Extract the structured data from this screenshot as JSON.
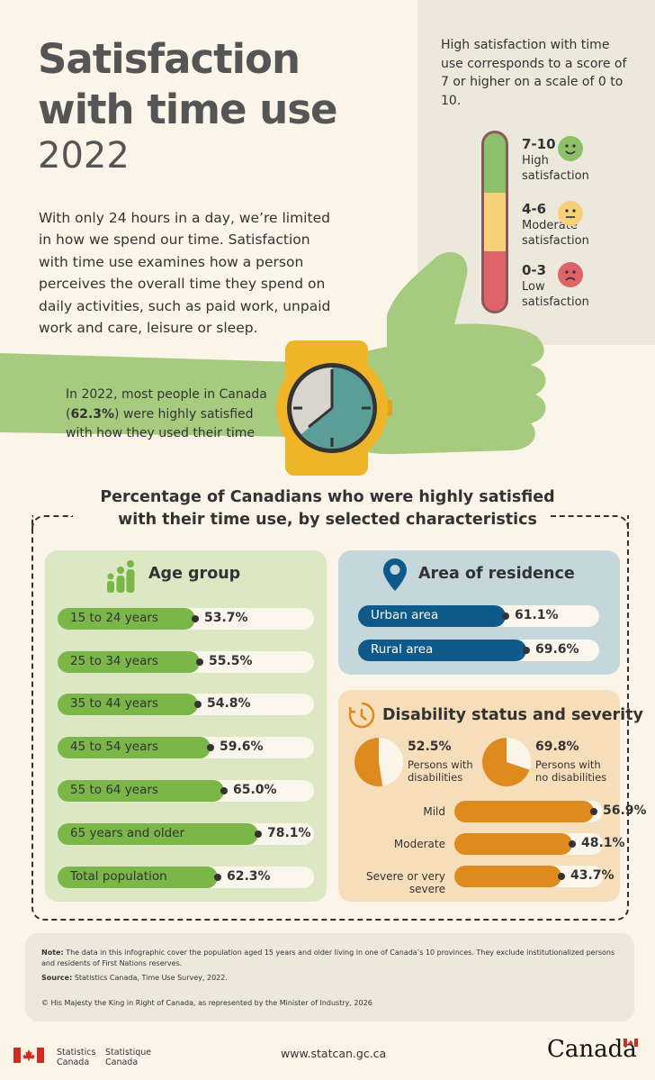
{
  "header": {
    "title_line1": "Satisfaction",
    "title_line2": "with time use",
    "year": "2022",
    "intro": "With only 24 hours in a day, we’re limited in how we spend our time. Satisfaction with time use examines how a person perceives the overall time they spend on daily activities, such as paid work, unpaid work and care, leisure or sleep."
  },
  "scale": {
    "description": "High satisfaction with time use corresponds to a score of 7 or higher on a scale of 0 to 10.",
    "levels": [
      {
        "range": "7-10",
        "label_line1": "High",
        "label_line2": "satisfaction",
        "color": "#8cc06b",
        "face": "smile"
      },
      {
        "range": "4-6",
        "label_line1": "Moderate",
        "label_line2": "satisfaction",
        "color": "#f9d07a",
        "face": "neutral"
      },
      {
        "range": "0-3",
        "label_line1": "Low",
        "label_line2": "satisfaction",
        "color": "#e0636a",
        "face": "frown"
      }
    ]
  },
  "callout": {
    "pre": "In 2022, most people in Canada (",
    "highlight": "62.3%",
    "post": ") were highly satisfied with how they used their time"
  },
  "section_title_line1": "Percentage of Canadians who were highly satisfied",
  "section_title_line2": "with their time use, by selected characteristics",
  "age_group": {
    "title": "Age group",
    "color": "#7ab648",
    "rows": [
      {
        "label": "15 to 24 years",
        "value": 53.7,
        "display": "53.7%"
      },
      {
        "label": "25 to 34 years",
        "value": 55.5,
        "display": "55.5%"
      },
      {
        "label": "35 to 44 years",
        "value": 54.8,
        "display": "54.8%"
      },
      {
        "label": "45 to 54 years",
        "value": 59.6,
        "display": "59.6%"
      },
      {
        "label": "55 to 64 years",
        "value": 65.0,
        "display": "65.0%"
      },
      {
        "label": "65 years and older",
        "value": 78.1,
        "display": "78.1%"
      },
      {
        "label": "Total population",
        "value": 62.3,
        "display": "62.3%"
      }
    ]
  },
  "residence": {
    "title": "Area of residence",
    "color": "#0e5a8a",
    "rows": [
      {
        "label": "Urban area",
        "value": 61.1,
        "display": "61.1%"
      },
      {
        "label": "Rural area",
        "value": 69.6,
        "display": "69.6%"
      }
    ]
  },
  "disability": {
    "title": "Disability status and severity",
    "color": "#de8a1e",
    "pies": [
      {
        "value": 52.5,
        "display": "52.5%",
        "label_line1": "Persons with",
        "label_line2": "disabilities"
      },
      {
        "value": 69.8,
        "display": "69.8%",
        "label_line1": "Persons with",
        "label_line2": "no disabilities"
      }
    ],
    "rows": [
      {
        "label": "Mild",
        "value": 56.9,
        "display": "56.9%"
      },
      {
        "label": "Moderate",
        "value": 48.1,
        "display": "48.1%"
      },
      {
        "label": "Severe or very severe",
        "value": 43.7,
        "display": "43.7%"
      }
    ]
  },
  "notes": {
    "note_label": "Note:",
    "note_text": "The data in this infographic cover the population aged 15 years and older living in one of Canada’s 10 provinces. They exclude institutionalized persons and residents of First Nations reserves.",
    "source_label": "Source:",
    "source_text": "Statistics Canada, Time Use Survey, 2022.",
    "copyright": "© His Majesty the King in Right of Canada, as represented by the Minister of Industry, 2026"
  },
  "footer": {
    "agency_en_1": "Statistics",
    "agency_en_2": "Canada",
    "agency_fr_1": "Statistique",
    "agency_fr_2": "Canada",
    "url": "www.statcan.gc.ca",
    "wordmark": "Canada"
  }
}
